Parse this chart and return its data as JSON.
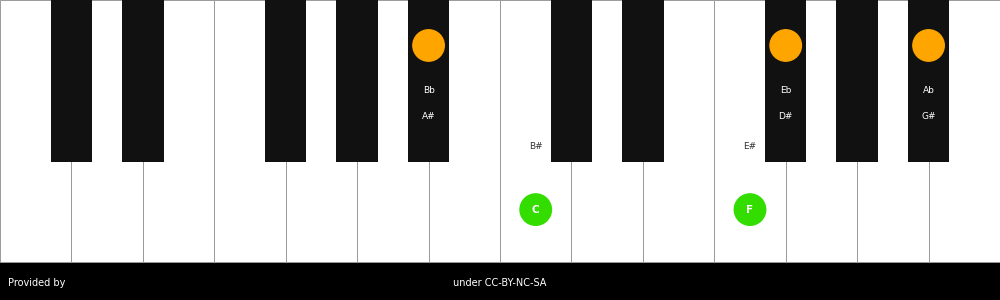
{
  "footer_left": "Provided by",
  "footer_right": "under CC-BY-NC-SA",
  "background_color": "#ffffff",
  "footer_bg": "#000000",
  "num_white_keys": 14,
  "white_key_color": "#ffffff",
  "black_key_color": "#111111",
  "key_border_color": "#999999",
  "notes": [
    {
      "type": "black",
      "bk_index": 4,
      "label_top": "A#",
      "label_bot": "Bb",
      "dot_color": "#FFA500",
      "dot_label": ""
    },
    {
      "type": "white",
      "wk_index": 7,
      "label_top": "B#",
      "label_bot": "",
      "dot_color": "#33dd00",
      "dot_label": "C"
    },
    {
      "type": "black",
      "bk_index": 7,
      "label_top": "D#",
      "label_bot": "Eb",
      "dot_color": "#FFA500",
      "dot_label": ""
    },
    {
      "type": "white",
      "wk_index": 10,
      "label_top": "E#",
      "label_bot": "",
      "dot_color": "#33dd00",
      "dot_label": "F"
    },
    {
      "type": "black",
      "bk_index": 9,
      "label_top": "G#",
      "label_bot": "Ab",
      "dot_color": "#FFA500",
      "dot_label": ""
    }
  ]
}
